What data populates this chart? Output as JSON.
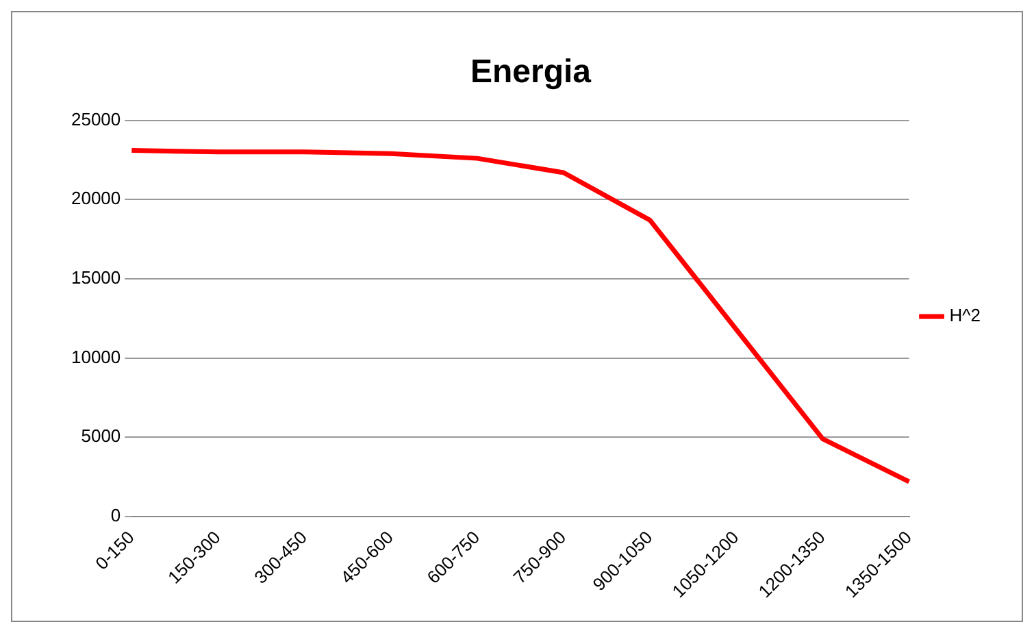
{
  "chart_data": {
    "type": "line",
    "title": "Energia",
    "categories": [
      "0-150",
      "150-300",
      "300-450",
      "450-600",
      "600-750",
      "750-900",
      "900-1050",
      "1050-1200",
      "1200-1350",
      "1350-1500"
    ],
    "series": [
      {
        "name": "H^2",
        "color": "#ff0000",
        "values": [
          23100,
          23000,
          23000,
          22900,
          22600,
          21700,
          18700,
          11800,
          4900,
          2200
        ]
      }
    ],
    "ylim": [
      0,
      25000
    ],
    "yticks": [
      0,
      5000,
      10000,
      15000,
      20000,
      25000
    ],
    "grid": "y",
    "legend": "right",
    "marker": "none",
    "line_style": "solid"
  }
}
